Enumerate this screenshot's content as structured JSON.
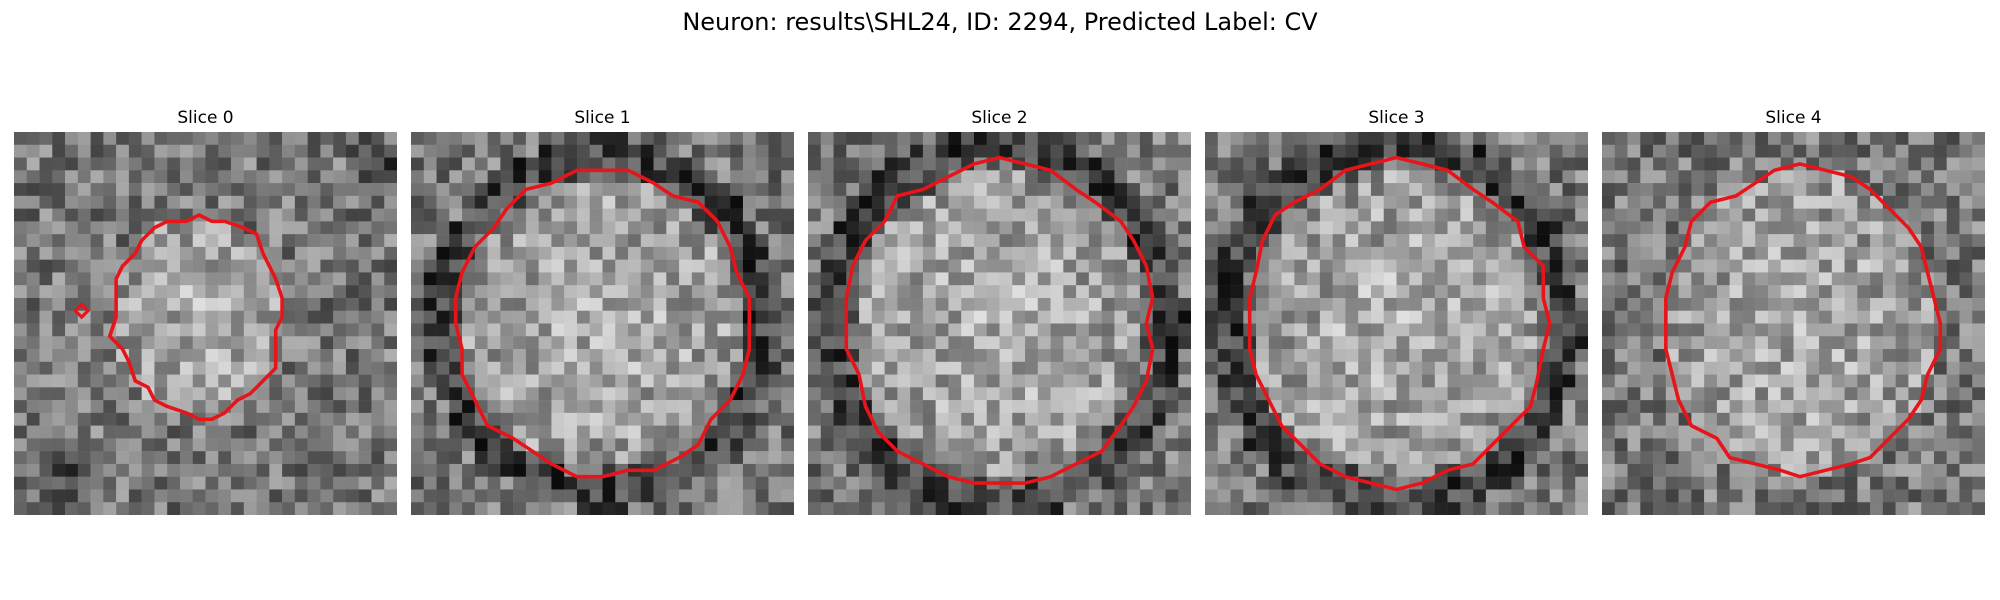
{
  "figure": {
    "title": "Neuron: results\\SHL24, ID: 2294, Predicted Label: CV"
  },
  "slices": [
    {
      "title": "Slice 0",
      "seed": 11,
      "blob": [
        0.48,
        0.48,
        0.22,
        0.26
      ],
      "dark_ring": false,
      "extra_dark": [
        [
          0.12,
          0.9,
          0.1
        ],
        [
          0.95,
          0.08,
          0.09
        ]
      ]
    },
    {
      "title": "Slice 1",
      "seed": 23,
      "blob": [
        0.5,
        0.5,
        0.38,
        0.4
      ],
      "dark_ring": true,
      "extra_dark": []
    },
    {
      "title": "Slice 2",
      "seed": 37,
      "blob": [
        0.5,
        0.5,
        0.4,
        0.42
      ],
      "dark_ring": true,
      "extra_dark": []
    },
    {
      "title": "Slice 3",
      "seed": 51,
      "blob": [
        0.5,
        0.5,
        0.4,
        0.42
      ],
      "dark_ring": true,
      "extra_dark": []
    },
    {
      "title": "Slice 4",
      "seed": 67,
      "blob": [
        0.52,
        0.5,
        0.36,
        0.4
      ],
      "dark_ring": false,
      "extra_dark": []
    }
  ],
  "colors": {
    "contour": "#e8141a"
  }
}
